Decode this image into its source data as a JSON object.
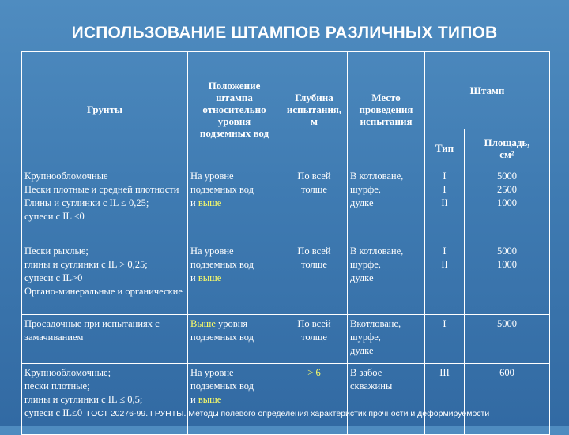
{
  "title": "ИСПОЛЬЗОВАНИЕ ШТАМПОВ РАЗЛИЧНЫХ ТИПОВ",
  "headers": {
    "soil": "Грунты",
    "position": "Положение\nштампа\nотносительно\nуровня\nподземных вод",
    "depth": "Глубина\nиспытания,\nм",
    "place": "Место\nпроведения\nиспытания",
    "stamp": "Штамп",
    "type": "Тип",
    "area": "Площадь,\nсм²"
  },
  "rows": [
    {
      "soil": "Крупнообломочные\nПески плотные и средней плотности\nГлины и суглинки с IL ≤ 0,25;\nсупеси с IL ≤0",
      "position_a": "На уровне\nподземных вод\nи ",
      "position_b": "выше",
      "position_c": "",
      "depth": "По всей\nтолще",
      "place": "В котловане,\nшурфе,\nдудке",
      "type": "I\nI\nII",
      "area": "5000\n2500\n1000"
    },
    {
      "soil": "Пески рыхлые;\nглины и суглинки с IL > 0,25;\nсупеси с IL>0\nОргано-минеральные и органические",
      "position_a": "На уровне\nподземных вод\nи ",
      "position_b": "выше",
      "position_c": "",
      "depth": "По всей\nтолще",
      "place": "В котловане,\nшурфе,\nдудке",
      "type": "I\nII",
      "area": "5000\n1000"
    },
    {
      "soil": "Просадочные при испытаниях с замачиванием",
      "position_a": "",
      "position_b": "Выше",
      "position_c": " уровня\nподземных вод",
      "depth": "По всей\nтолще",
      "place": "Вкотловане,\nшурфе,\nдудке",
      "type": "I",
      "area": "5000"
    },
    {
      "soil": "Крупнообломочные;\nпески плотные;\nглины и суглинки с IL ≤ 0,5;\nсупеси с IL≤0",
      "position_a": "На уровне\nподземных вод\nи ",
      "position_b": "выше",
      "position_c": "",
      "depth": "> 6",
      "place": "В забое\nскважины",
      "type": "III",
      "area": "600"
    }
  ],
  "footer": "ГОСТ 20276-99. ГРУНТЫ. Методы полевого определения характеристик прочности и деформируемости"
}
